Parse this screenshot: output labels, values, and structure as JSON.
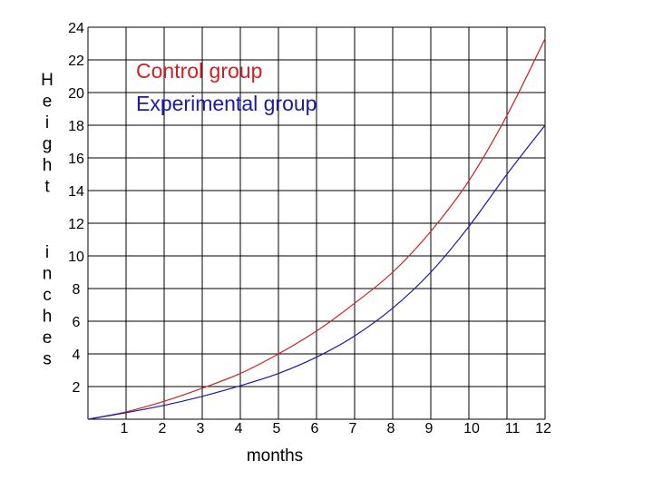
{
  "chart_data": {
    "type": "line",
    "title": "",
    "xlabel": "months",
    "ylabel_part1": "Height",
    "ylabel_part2": "inches",
    "xlim": [
      0,
      12
    ],
    "ylim": [
      0,
      24
    ],
    "x_ticks": [
      "1",
      "2",
      "3",
      "4",
      "5",
      "6",
      "7",
      "8",
      "9",
      "10",
      "11",
      "12"
    ],
    "y_ticks": [
      "2",
      "4",
      "6",
      "8",
      "10",
      "12",
      "14",
      "16",
      "18",
      "20",
      "22",
      "24"
    ],
    "grid": true,
    "legend_placement": "top-left",
    "series": [
      {
        "name": "Control group",
        "color": "#cc2222",
        "x": [
          0,
          1,
          2,
          3,
          4,
          5,
          6,
          7,
          8,
          9,
          10,
          11,
          12
        ],
        "y": [
          0,
          0.45,
          1.1,
          1.9,
          2.8,
          4.0,
          5.4,
          7.1,
          9.0,
          11.5,
          14.6,
          18.6,
          23.3
        ]
      },
      {
        "name": "Experimental group",
        "color": "#1a1aa8",
        "x": [
          0,
          1,
          2,
          3,
          4,
          5,
          6,
          7,
          8,
          9,
          10,
          11,
          12
        ],
        "y": [
          0,
          0.4,
          0.85,
          1.4,
          2.05,
          2.8,
          3.8,
          5.1,
          6.8,
          9.0,
          11.8,
          15.0,
          18.0
        ]
      }
    ]
  }
}
